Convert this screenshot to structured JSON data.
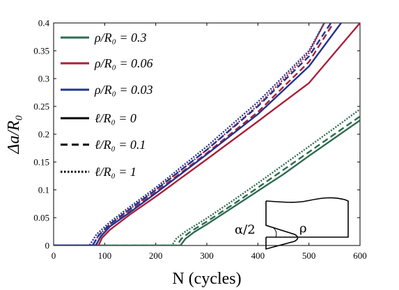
{
  "chart_data": {
    "type": "line",
    "xlabel": "N (cycles)",
    "ylabel": "Δa/R₀",
    "xlim": [
      0,
      600
    ],
    "ylim": [
      0,
      0.4
    ],
    "xticks": [
      "0",
      "100",
      "200",
      "300",
      "400",
      "500",
      "600"
    ],
    "yticks": [
      "0",
      "0.05",
      "0.1",
      "0.15",
      "0.2",
      "0.25",
      "0.3",
      "0.35",
      "0.4"
    ],
    "grid": false,
    "legend_position": "top-left",
    "legend": [
      {
        "label": "ρ/R₀ = 0.3",
        "color": "#2e6b4f",
        "dash": "solid"
      },
      {
        "label": "ρ/R₀ = 0.06",
        "color": "#a8203a",
        "dash": "solid"
      },
      {
        "label": "ρ/R₀ = 0.03",
        "color": "#22338c",
        "dash": "solid"
      },
      {
        "label": "ℓ/R₀ = 0",
        "color": "#000000",
        "dash": "solid"
      },
      {
        "label": "ℓ/R₀ = 0.1",
        "color": "#000000",
        "dash": "dashed"
      },
      {
        "label": "ℓ/R₀ = 1",
        "color": "#000000",
        "dash": "dotted"
      }
    ],
    "series": [
      {
        "color": "#2e6b4f",
        "dash": "solid",
        "x": [
          0,
          248,
          250,
          258,
          275,
          300,
          350,
          400,
          450,
          500,
          550,
          600
        ],
        "y": [
          0,
          0,
          0.002,
          0.012,
          0.024,
          0.038,
          0.068,
          0.098,
          0.128,
          0.161,
          0.193,
          0.225
        ]
      },
      {
        "color": "#2e6b4f",
        "dash": "dashed",
        "x": [
          0,
          240,
          243,
          250,
          268,
          300,
          350,
          400,
          450,
          500,
          550,
          600
        ],
        "y": [
          0,
          0,
          0.002,
          0.012,
          0.025,
          0.043,
          0.073,
          0.104,
          0.136,
          0.168,
          0.2,
          0.232
        ]
      },
      {
        "color": "#2e6b4f",
        "dash": "dotted",
        "x": [
          0,
          230,
          233,
          240,
          258,
          300,
          350,
          400,
          450,
          500,
          550,
          600
        ],
        "y": [
          0,
          0,
          0.002,
          0.012,
          0.025,
          0.049,
          0.08,
          0.112,
          0.145,
          0.178,
          0.211,
          0.245
        ]
      },
      {
        "color": "#a8203a",
        "dash": "solid",
        "x": [
          0,
          88,
          90,
          95,
          110,
          150,
          200,
          300,
          400,
          500,
          600
        ],
        "y": [
          0,
          0,
          0.004,
          0.014,
          0.028,
          0.056,
          0.088,
          0.155,
          0.223,
          0.292,
          0.4
        ]
      },
      {
        "color": "#a8203a",
        "dash": "dashed",
        "x": [
          0,
          82,
          85,
          92,
          110,
          150,
          200,
          300,
          400,
          500,
          548
        ],
        "y": [
          0,
          0,
          0.004,
          0.016,
          0.034,
          0.062,
          0.096,
          0.166,
          0.24,
          0.33,
          0.4
        ]
      },
      {
        "color": "#a8203a",
        "dash": "dotted",
        "x": [
          0,
          76,
          79,
          88,
          110,
          150,
          200,
          300,
          400,
          500,
          530
        ],
        "y": [
          0,
          0,
          0.004,
          0.018,
          0.038,
          0.066,
          0.1,
          0.172,
          0.252,
          0.346,
          0.4
        ]
      },
      {
        "color": "#22338c",
        "dash": "solid",
        "x": [
          0,
          82,
          85,
          92,
          110,
          150,
          200,
          300,
          400,
          500,
          563
        ],
        "y": [
          0,
          0,
          0.004,
          0.016,
          0.034,
          0.06,
          0.094,
          0.164,
          0.236,
          0.322,
          0.4
        ]
      },
      {
        "color": "#22338c",
        "dash": "dashed",
        "x": [
          0,
          76,
          79,
          88,
          110,
          150,
          200,
          300,
          400,
          500,
          543
        ],
        "y": [
          0,
          0,
          0.004,
          0.018,
          0.038,
          0.066,
          0.1,
          0.172,
          0.25,
          0.34,
          0.4
        ]
      },
      {
        "color": "#22338c",
        "dash": "dotted",
        "x": [
          0,
          70,
          73,
          84,
          110,
          150,
          200,
          300,
          400,
          500,
          530
        ],
        "y": [
          0,
          0,
          0.004,
          0.02,
          0.042,
          0.07,
          0.104,
          0.178,
          0.258,
          0.35,
          0.4
        ]
      }
    ],
    "inset": {
      "labels": [
        "α/2",
        "ρ"
      ]
    }
  }
}
